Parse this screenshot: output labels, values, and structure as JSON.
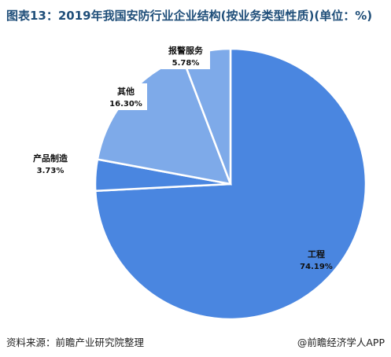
{
  "title": "图表13：2019年我国安防行业企业结构(按业务类型性质)(单位：%)",
  "chart_data": {
    "type": "pie",
    "unit": "%",
    "slices": [
      {
        "label": "工程",
        "value": 74.19,
        "value_label": "74.19%",
        "color": "#4a86e0"
      },
      {
        "label": "产品制造",
        "value": 3.73,
        "value_label": "3.73%",
        "color": "#4a86e0"
      },
      {
        "label": "其他",
        "value": 16.3,
        "value_label": "16.30%",
        "color": "#7eaae9"
      },
      {
        "label": "报警服务",
        "value": 5.78,
        "value_label": "5.78%",
        "color": "#7eaae9"
      }
    ]
  },
  "footer": {
    "source": "资料来源：前瞻产业研究院整理",
    "brand": "@前瞻经济学人APP"
  }
}
